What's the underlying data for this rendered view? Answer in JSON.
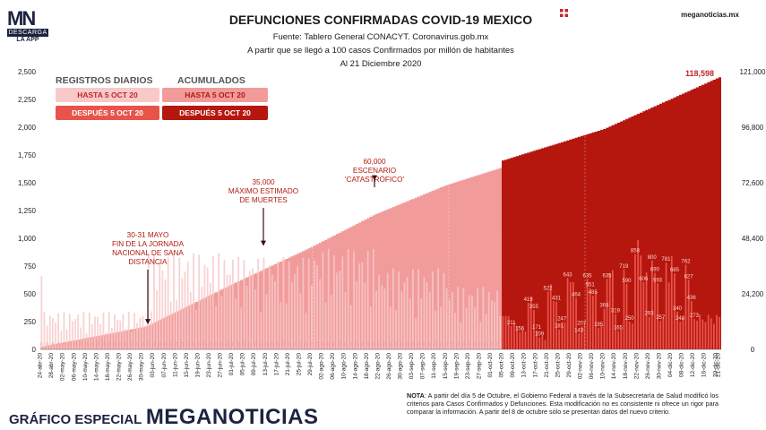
{
  "header": {
    "logo_text": "MN",
    "logo_descarga": "DESCARGA",
    "logo_app": "LA APP",
    "title": "DEFUNCIONES CONFIRMADAS COVID-19 MEXICO",
    "source": "Fuente: Tablero General CONACYT. Coronavirus.gob.mx",
    "subtitle": "A partir que se llegó a 100 casos Confirmados por millón de habitantes",
    "date_note": "Al 21 Diciembre 2020",
    "site": "meganoticias.mx"
  },
  "legend": {
    "daily_title": "REGISTROS DIARIOS",
    "cum_title": "ACUMULADOS",
    "daily_before": "HASTA 5 OCT 20",
    "daily_after": "DESPUÉS 5 OCT 20",
    "cum_before": "HASTA 5 OCT 20",
    "cum_after": "DESPUÉS 5 OCT 20"
  },
  "colors": {
    "daily_before": "#f7c9c9",
    "daily_after": "#e8534a",
    "cum_before": "#f29b9b",
    "cum_after": "#b5170e",
    "text_red": "#b01a10"
  },
  "annotations": [
    {
      "lines": [
        "30-31 MAYO",
        "FIN DE LA JORNADA",
        "NACIONAL DE SANA",
        "DISTANCIA"
      ],
      "date_index": 38
    },
    {
      "lines": [
        "35,000",
        "MÁXIMO ESTIMADO",
        "DE MUERTES"
      ],
      "date_index": 96
    },
    {
      "lines": [
        "60,000",
        "ESCENARIO",
        "'CATASTRÓFICO'"
      ],
      "date_index": 148
    }
  ],
  "final_value_label": "118,598",
  "note": {
    "bold": "NOTA",
    "text": ": A partir del día 5 de Octubre, el Gobierno Federal a través de la Subsecretaría de Salud modificó los criterios para Casos Confirmados y Defunciones. Esta modificación no es consistente ni ofrece un rigor para comparar la información. A partir del 8 de octubre sólo se presentan datos del nuevo criterio."
  },
  "footer": {
    "label": "GRÁFICO ESPECIAL",
    "brand": "MEGANOTICIAS"
  },
  "chart_data": {
    "type": "bar",
    "title": "DEFUNCIONES CONFIRMADAS COVID-19 MEXICO",
    "start_date": "2020-04-24",
    "end_date": "2020-12-21",
    "regime_change_date": "2020-10-05",
    "left_axis": {
      "ylim": [
        0,
        2500
      ],
      "ticks": [
        "0",
        "250",
        "500",
        "750",
        "1,000",
        "1,250",
        "1,500",
        "1,750",
        "2,000",
        "2,250",
        "2,500"
      ]
    },
    "right_axis": {
      "ylim": [
        0,
        121000
      ],
      "ticks": [
        "0",
        "24,200",
        "48,400",
        "72,600",
        "96,800",
        "121,000"
      ]
    },
    "x_tick_labels": [
      "24-abr-20",
      "28-abr-20",
      "02-may-20",
      "06-may-20",
      "10-may-20",
      "14-may-20",
      "18-may-20",
      "22-may-20",
      "26-may-20",
      "30-may-20",
      "03-jun-20",
      "07-jun-20",
      "11-jun-20",
      "15-jun-20",
      "19-jun-20",
      "23-jun-20",
      "27-jun-20",
      "01-jul-20",
      "05-jul-20",
      "09-jul-20",
      "13-jul-20",
      "17-jul-20",
      "21-jul-20",
      "25-jul-20",
      "29-jul-20",
      "02-ago-20",
      "06-ago-20",
      "10-ago-20",
      "14-ago-20",
      "18-ago-20",
      "22-ago-20",
      "26-ago-20",
      "30-ago-20",
      "03-sep-20",
      "07-sep-20",
      "11-sep-20",
      "15-sep-20",
      "19-sep-20",
      "23-sep-20",
      "27-sep-20",
      "01-oct-20",
      "05-oct-20",
      "09-oct-20",
      "13-oct-20",
      "17-oct-20",
      "21-oct-20",
      "25-oct-20",
      "29-oct-20",
      "02-nov-20",
      "06-nov-20",
      "10-nov-20",
      "14-nov-20",
      "18-nov-20",
      "22-nov-20",
      "26-nov-20",
      "30-nov-20",
      "04-dic-20",
      "08-dic-20",
      "12-dic-20",
      "16-dic-20",
      "20-dic-20",
      "21-dic-20"
    ],
    "cumulative": {
      "anchors": [
        {
          "date": "2020-04-24",
          "value": 1200
        },
        {
          "date": "2020-05-31",
          "value": 9900
        },
        {
          "date": "2020-07-01",
          "value": 28500
        },
        {
          "date": "2020-07-28",
          "value": 44000
        },
        {
          "date": "2020-08-21",
          "value": 59000
        },
        {
          "date": "2020-09-15",
          "value": 71600
        },
        {
          "date": "2020-10-04",
          "value": 79000
        },
        {
          "date": "2020-10-05",
          "value": 82300
        },
        {
          "date": "2020-11-10",
          "value": 96000
        },
        {
          "date": "2020-12-21",
          "value": 118598
        }
      ]
    },
    "daily_labeled_after_change": [
      {
        "date": "2020-10-08",
        "value": 211
      },
      {
        "date": "2020-10-11",
        "value": 156
      },
      {
        "date": "2020-10-14",
        "value": 419
      },
      {
        "date": "2020-10-16",
        "value": 355
      },
      {
        "date": "2020-10-17",
        "value": 171
      },
      {
        "date": "2020-10-18",
        "value": 109
      },
      {
        "date": "2020-10-21",
        "value": 522
      },
      {
        "date": "2020-10-24",
        "value": 431
      },
      {
        "date": "2020-10-25",
        "value": 181
      },
      {
        "date": "2020-10-26",
        "value": 247
      },
      {
        "date": "2020-10-28",
        "value": 643
      },
      {
        "date": "2020-10-31",
        "value": 464
      },
      {
        "date": "2020-11-01",
        "value": 143
      },
      {
        "date": "2020-11-02",
        "value": 207
      },
      {
        "date": "2020-11-04",
        "value": 635
      },
      {
        "date": "2020-11-05",
        "value": 551
      },
      {
        "date": "2020-11-06",
        "value": 485
      },
      {
        "date": "2020-11-08",
        "value": 195
      },
      {
        "date": "2020-11-10",
        "value": 368
      },
      {
        "date": "2020-11-11",
        "value": 635
      },
      {
        "date": "2020-11-14",
        "value": 319
      },
      {
        "date": "2020-11-15",
        "value": 165
      },
      {
        "date": "2020-11-17",
        "value": 719
      },
      {
        "date": "2020-11-18",
        "value": 590
      },
      {
        "date": "2020-11-19",
        "value": 250
      },
      {
        "date": "2020-11-21",
        "value": 858
      },
      {
        "date": "2020-11-24",
        "value": 606
      },
      {
        "date": "2020-11-26",
        "value": 293
      },
      {
        "date": "2020-11-27",
        "value": 800
      },
      {
        "date": "2020-11-28",
        "value": 690
      },
      {
        "date": "2020-11-29",
        "value": 593
      },
      {
        "date": "2020-11-30",
        "value": 257
      },
      {
        "date": "2020-12-02",
        "value": 781
      },
      {
        "date": "2020-12-05",
        "value": 685
      },
      {
        "date": "2020-12-06",
        "value": 340
      },
      {
        "date": "2020-12-07",
        "value": 248
      },
      {
        "date": "2020-12-09",
        "value": 762
      },
      {
        "date": "2020-12-10",
        "value": 627
      },
      {
        "date": "2020-12-11",
        "value": 436
      },
      {
        "date": "2020-12-12",
        "value": 273
      }
    ]
  }
}
